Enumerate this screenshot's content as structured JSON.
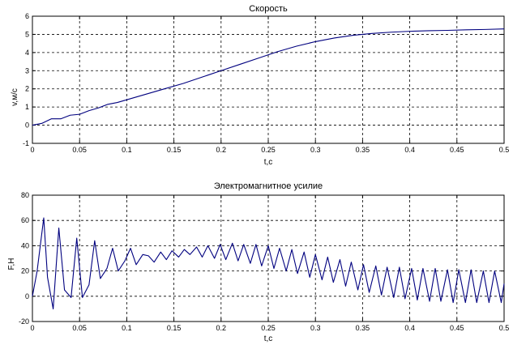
{
  "chart_data": [
    {
      "type": "line",
      "title": "Скорость",
      "xlabel": "t,c",
      "ylabel": "v,м/с",
      "xlim": [
        0,
        0.5
      ],
      "ylim": [
        -1,
        6
      ],
      "xticks": [
        0,
        0.05,
        0.1,
        0.15,
        0.2,
        0.25,
        0.3,
        0.35,
        0.4,
        0.45,
        0.5
      ],
      "xtick_labels": [
        "0",
        "0.05",
        "0.1",
        "0.15",
        "0.2",
        "0.25",
        "0.3",
        "0.35",
        "0.4",
        "0.45",
        "0.5"
      ],
      "yticks": [
        -1,
        0,
        1,
        2,
        3,
        4,
        5,
        6
      ],
      "ytick_labels": [
        "-1",
        "0",
        "1",
        "2",
        "3",
        "4",
        "5",
        "6"
      ],
      "grid": true,
      "color": "#00007f",
      "series": [
        {
          "x": [
            0,
            0.01,
            0.02,
            0.03,
            0.04,
            0.05,
            0.06,
            0.07,
            0.08,
            0.09,
            0.1,
            0.12,
            0.14,
            0.16,
            0.18,
            0.2,
            0.22,
            0.24,
            0.26,
            0.28,
            0.3,
            0.32,
            0.34,
            0.36,
            0.38,
            0.4,
            0.42,
            0.44,
            0.46,
            0.48,
            0.5
          ],
          "y": [
            0,
            0.1,
            0.35,
            0.35,
            0.55,
            0.6,
            0.8,
            0.95,
            1.15,
            1.25,
            1.4,
            1.7,
            2.0,
            2.3,
            2.65,
            3.0,
            3.35,
            3.7,
            4.05,
            4.35,
            4.6,
            4.8,
            4.95,
            5.05,
            5.12,
            5.17,
            5.2,
            5.22,
            5.25,
            5.27,
            5.3
          ]
        }
      ]
    },
    {
      "type": "line",
      "title": "Электромагнитное усилие",
      "xlabel": "t,c",
      "ylabel": "F,H",
      "xlim": [
        0,
        0.5
      ],
      "ylim": [
        -20,
        80
      ],
      "xticks": [
        0,
        0.05,
        0.1,
        0.15,
        0.2,
        0.25,
        0.3,
        0.35,
        0.4,
        0.45,
        0.5
      ],
      "xtick_labels": [
        "0",
        "0.05",
        "0.1",
        "0.15",
        "0.2",
        "0.25",
        "0.3",
        "0.35",
        "0.4",
        "0.45",
        "0.5"
      ],
      "yticks": [
        -20,
        0,
        20,
        40,
        60,
        80
      ],
      "ytick_labels": [
        "-20",
        "0",
        "20",
        "40",
        "60",
        "80"
      ],
      "grid": true,
      "color": "#00007f",
      "series": [
        {
          "x": [
            0,
            0.005,
            0.012,
            0.016,
            0.022,
            0.028,
            0.034,
            0.041,
            0.047,
            0.053,
            0.06,
            0.066,
            0.072,
            0.079,
            0.085,
            0.091,
            0.098,
            0.104,
            0.11,
            0.117,
            0.123,
            0.129,
            0.136,
            0.142,
            0.148,
            0.155,
            0.161,
            0.167,
            0.174,
            0.18,
            0.186,
            0.193,
            0.199,
            0.205,
            0.212,
            0.218,
            0.224,
            0.231,
            0.237,
            0.243,
            0.25,
            0.256,
            0.262,
            0.269,
            0.275,
            0.281,
            0.288,
            0.294,
            0.3,
            0.307,
            0.313,
            0.319,
            0.326,
            0.332,
            0.338,
            0.345,
            0.351,
            0.357,
            0.364,
            0.37,
            0.376,
            0.383,
            0.389,
            0.395,
            0.402,
            0.408,
            0.414,
            0.421,
            0.427,
            0.433,
            0.44,
            0.446,
            0.452,
            0.459,
            0.465,
            0.471,
            0.478,
            0.484,
            0.49,
            0.497,
            0.5
          ],
          "y": [
            0,
            20,
            62,
            15,
            -10,
            54,
            5,
            -1,
            46,
            -1,
            9,
            44,
            14,
            22,
            38,
            20,
            28,
            38,
            25,
            33,
            32,
            27,
            35,
            29,
            36,
            31,
            37,
            33,
            39,
            31,
            40,
            30,
            41,
            29,
            42,
            28,
            41,
            26,
            41,
            24,
            40,
            22,
            38,
            20,
            37,
            18,
            35,
            15,
            33,
            13,
            31,
            11,
            29,
            8,
            27,
            5,
            25,
            3,
            24,
            1,
            23,
            -1,
            23,
            -2,
            22,
            -3,
            22,
            -4,
            22,
            -4,
            21,
            -5,
            21,
            -5,
            21,
            -5,
            20,
            -5,
            20,
            -5,
            10
          ]
        }
      ]
    }
  ]
}
